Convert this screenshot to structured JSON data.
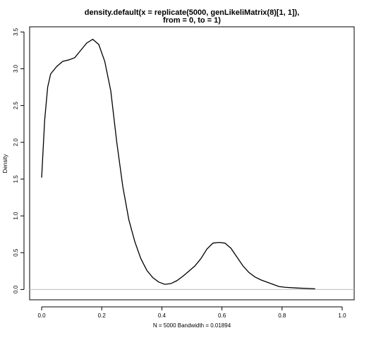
{
  "chart_data": {
    "type": "line",
    "title": "density.default(x = replicate(5000, genLikeliMatrix(8)[1, 1]),",
    "subtitle": "from = 0, to = 1)",
    "x_label": "N = 5000   Bandwidth = 0.01894",
    "y_label": "Density",
    "x": [
      0.0,
      0.01,
      0.02,
      0.03,
      0.05,
      0.07,
      0.09,
      0.11,
      0.13,
      0.15,
      0.17,
      0.19,
      0.21,
      0.23,
      0.25,
      0.27,
      0.29,
      0.31,
      0.33,
      0.35,
      0.37,
      0.39,
      0.41,
      0.43,
      0.45,
      0.47,
      0.49,
      0.51,
      0.53,
      0.55,
      0.57,
      0.59,
      0.61,
      0.63,
      0.65,
      0.67,
      0.69,
      0.71,
      0.73,
      0.75,
      0.77,
      0.79,
      0.81,
      0.85,
      0.91
    ],
    "series": [
      {
        "name": "density",
        "color": "#000000",
        "values": [
          1.52,
          2.3,
          2.75,
          2.93,
          3.03,
          3.1,
          3.12,
          3.15,
          3.25,
          3.35,
          3.4,
          3.33,
          3.1,
          2.7,
          2.0,
          1.4,
          0.95,
          0.65,
          0.42,
          0.26,
          0.16,
          0.1,
          0.07,
          0.08,
          0.12,
          0.18,
          0.25,
          0.32,
          0.42,
          0.55,
          0.63,
          0.64,
          0.63,
          0.56,
          0.44,
          0.32,
          0.23,
          0.17,
          0.13,
          0.1,
          0.07,
          0.04,
          0.03,
          0.02,
          0.01
        ]
      }
    ],
    "xlim": [
      -0.04,
      1.04
    ],
    "ylim": [
      -0.14,
      3.57
    ],
    "xticks": [
      {
        "value": 0,
        "label": "0.0"
      },
      0.2,
      0.4,
      0.6,
      0.8,
      {
        "value": 1,
        "label": "1.0"
      }
    ],
    "yticks": [
      {
        "value": 0,
        "label": "0.0"
      },
      0.5,
      {
        "value": 1,
        "label": "1.0"
      },
      1.5,
      {
        "value": 2,
        "label": "2.0"
      },
      2.5,
      {
        "value": 3,
        "label": "3.0"
      },
      3.5
    ]
  }
}
